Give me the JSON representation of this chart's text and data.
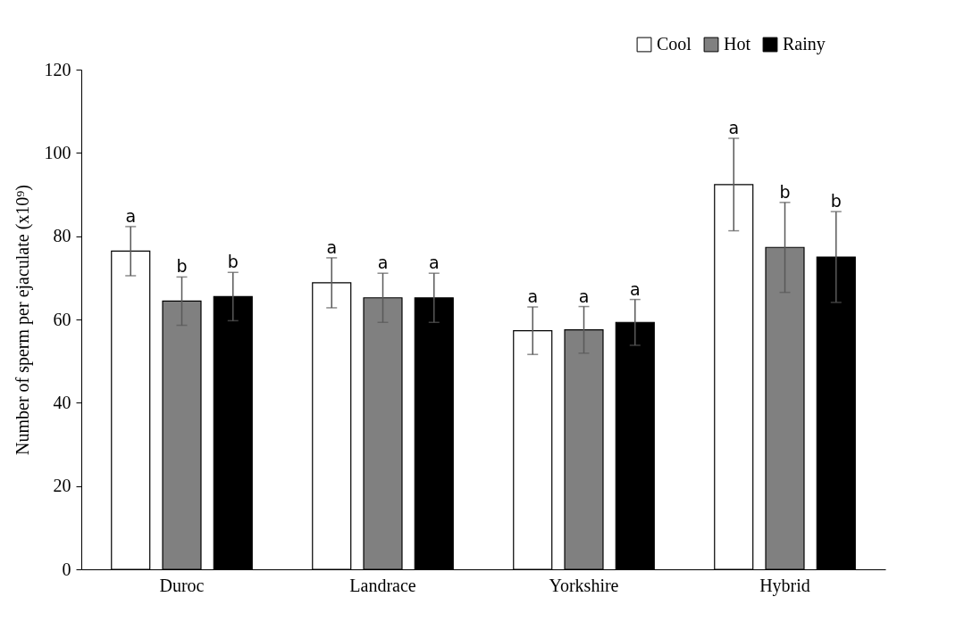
{
  "chart_data": {
    "type": "bar",
    "ylabel": "Number of sperm per ejaculate (x10⁹)",
    "categories": [
      "Duroc",
      "Landrace",
      "Yorkshire",
      "Hybrid"
    ],
    "series": [
      {
        "name": "Cool",
        "color": "#ffffff",
        "values": [
          76.4,
          68.8,
          57.3,
          92.4
        ],
        "errors": [
          5.9,
          6.0,
          5.7,
          11.1
        ],
        "value_labels": [
          "a",
          "a",
          "a",
          "a"
        ]
      },
      {
        "name": "Hot",
        "color": "#808080",
        "values": [
          64.4,
          65.2,
          57.5,
          77.3
        ],
        "errors": [
          5.8,
          5.9,
          5.6,
          10.8
        ],
        "value_labels": [
          "b",
          "a",
          "a",
          "b"
        ]
      },
      {
        "name": "Rainy",
        "color": "#000000",
        "values": [
          65.5,
          65.2,
          59.3,
          75.0
        ],
        "errors": [
          5.8,
          5.9,
          5.5,
          10.9
        ],
        "value_labels": [
          "b",
          "a",
          "a",
          "b"
        ]
      }
    ],
    "ylim": [
      0,
      120
    ],
    "yticks": [
      0,
      20,
      40,
      60,
      80,
      100,
      120
    ],
    "grid": false,
    "legend": "top right"
  }
}
